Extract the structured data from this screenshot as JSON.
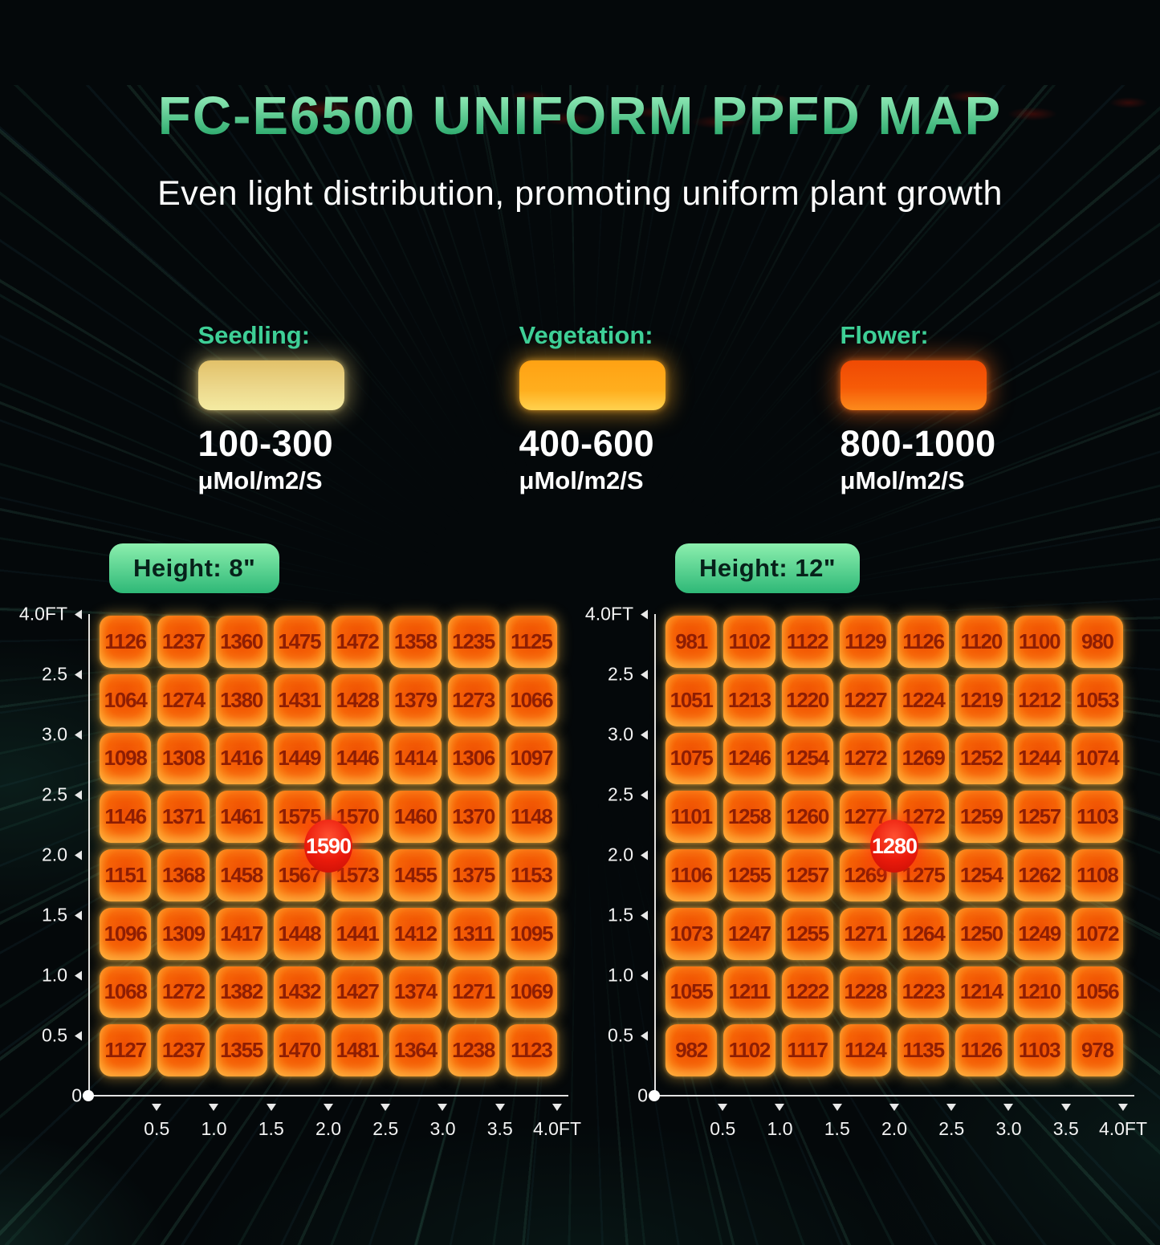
{
  "title": "FC-E6500 UNIFORM PPFD MAP",
  "subtitle": "Even light distribution, promoting uniform plant growth",
  "colors": {
    "title_gradient_top": "#9df2c0",
    "title_gradient_bottom": "#1fa163",
    "accent_green": "#3ecf96",
    "badge_green_top": "#8cefae",
    "badge_green_bottom": "#2eb877",
    "seedling_top": "#e2c169",
    "seedling_bottom": "#f4eba2",
    "vegetation_top": "#ffa213",
    "vegetation_bottom": "#ffd24f",
    "flower_top": "#ef4a04",
    "flower_bottom": "#fc8b1c",
    "cell_text": "#8e1e03",
    "peak_red": "#ea1a0b"
  },
  "legend": [
    {
      "name": "Seedling:",
      "range": "100-300",
      "unit": "μMol/m2/S"
    },
    {
      "name": "Vegetation:",
      "range": "400-600",
      "unit": "μMol/m2/S"
    },
    {
      "name": "Flower:",
      "range": "800-1000",
      "unit": "μMol/m2/S"
    }
  ],
  "chart_data": [
    {
      "type": "heatmap",
      "height_label": "Height: 8\"",
      "peak_value": "1590",
      "peak_position_ft": {
        "x": 2.0,
        "y": 2.0
      },
      "x_ticks": [
        "0.5",
        "1.0",
        "1.5",
        "2.0",
        "2.5",
        "3.0",
        "3.5",
        "4.0FT"
      ],
      "y_ticks": [
        "4.0FT",
        "2.5",
        "3.0",
        "2.5",
        "2.0",
        "1.5",
        "1.0",
        "0.5",
        "0"
      ],
      "values": [
        [
          1126,
          1237,
          1360,
          1475,
          1472,
          1358,
          1235,
          1125
        ],
        [
          1064,
          1274,
          1380,
          1431,
          1428,
          1379,
          1273,
          1066
        ],
        [
          1098,
          1308,
          1416,
          1449,
          1446,
          1414,
          1306,
          1097
        ],
        [
          1146,
          1371,
          1461,
          1575,
          1570,
          1460,
          1370,
          1148
        ],
        [
          1151,
          1368,
          1458,
          1567,
          1573,
          1455,
          1375,
          1153
        ],
        [
          1096,
          1309,
          1417,
          1448,
          1441,
          1412,
          1311,
          1095
        ],
        [
          1068,
          1272,
          1382,
          1432,
          1427,
          1374,
          1271,
          1069
        ],
        [
          1127,
          1237,
          1355,
          1470,
          1481,
          1364,
          1238,
          1123
        ]
      ]
    },
    {
      "type": "heatmap",
      "height_label": "Height: 12\"",
      "peak_value": "1280",
      "peak_position_ft": {
        "x": 2.0,
        "y": 2.0
      },
      "x_ticks": [
        "0.5",
        "1.0",
        "1.5",
        "2.0",
        "2.5",
        "3.0",
        "3.5",
        "4.0FT"
      ],
      "y_ticks": [
        "4.0FT",
        "2.5",
        "3.0",
        "2.5",
        "2.0",
        "1.5",
        "1.0",
        "0.5",
        "0"
      ],
      "values": [
        [
          981,
          1102,
          1122,
          1129,
          1126,
          1120,
          1100,
          980
        ],
        [
          1051,
          1213,
          1220,
          1227,
          1224,
          1219,
          1212,
          1053
        ],
        [
          1075,
          1246,
          1254,
          1272,
          1269,
          1252,
          1244,
          1074
        ],
        [
          1101,
          1258,
          1260,
          1277,
          1272,
          1259,
          1257,
          1103
        ],
        [
          1106,
          1255,
          1257,
          1269,
          1275,
          1254,
          1262,
          1108
        ],
        [
          1073,
          1247,
          1255,
          1271,
          1264,
          1250,
          1249,
          1072
        ],
        [
          1055,
          1211,
          1222,
          1228,
          1223,
          1214,
          1210,
          1056
        ],
        [
          982,
          1102,
          1117,
          1124,
          1135,
          1126,
          1103,
          978
        ]
      ]
    }
  ]
}
